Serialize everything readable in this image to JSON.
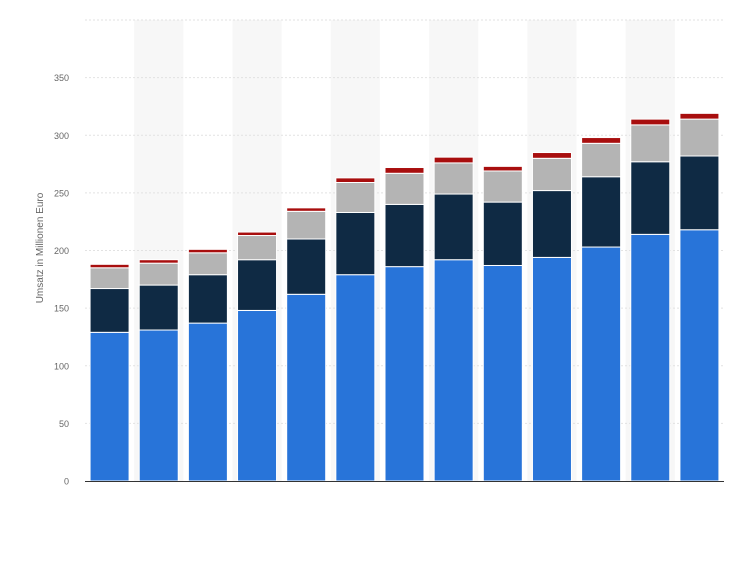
{
  "chart_data": {
    "type": "bar",
    "stacked": true,
    "ylabel": "Umsatz in Millionen Euro",
    "ylim": [
      0,
      400
    ],
    "yticks": [
      0,
      50,
      100,
      150,
      200,
      250,
      300,
      350
    ],
    "grid": true,
    "categories": [
      "",
      "",
      "",
      "",
      "",
      "",
      "",
      "",
      "",
      "",
      "",
      "",
      ""
    ],
    "series": [
      {
        "color": "#2874d9",
        "values": [
          129,
          131,
          137,
          148,
          162,
          179,
          186,
          192,
          187,
          194,
          203,
          214,
          218
        ]
      },
      {
        "color": "#0f2a44",
        "values": [
          38,
          39,
          42,
          44,
          48,
          54,
          54,
          57,
          55,
          58,
          61,
          63,
          64
        ]
      },
      {
        "color": "#b4b4b4",
        "values": [
          18,
          19,
          19,
          21,
          24,
          26,
          27,
          27,
          27,
          28,
          29,
          32,
          32
        ]
      },
      {
        "color": "#a80e0e",
        "values": [
          3,
          3,
          3,
          3,
          3,
          4,
          5,
          5,
          4,
          5,
          5,
          5,
          5
        ]
      }
    ]
  }
}
